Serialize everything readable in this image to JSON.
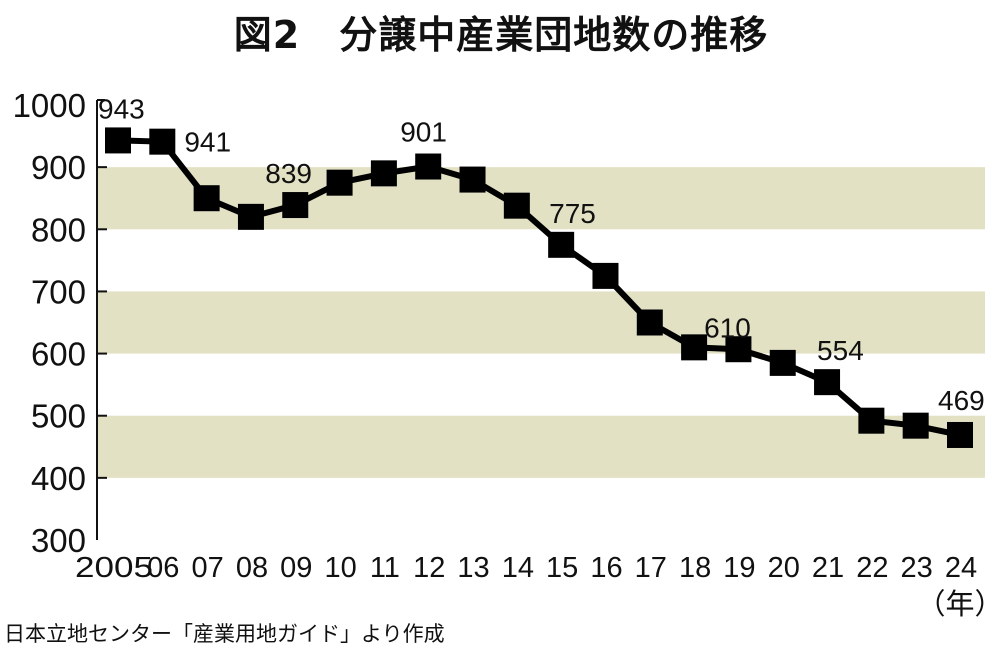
{
  "chart_data": {
    "type": "line",
    "title": "図2　分譲中産業団地数の推移",
    "xlabel": "（年）",
    "ylabel": "",
    "categories": [
      "2005",
      "06",
      "07",
      "08",
      "09",
      "10",
      "11",
      "12",
      "13",
      "14",
      "15",
      "16",
      "17",
      "18",
      "19",
      "20",
      "21",
      "22",
      "23",
      "24"
    ],
    "series": [
      {
        "name": "分譲中産業団地数",
        "values": [
          943,
          941,
          850,
          820,
          839,
          875,
          890,
          901,
          880,
          838,
          775,
          725,
          650,
          610,
          607,
          585,
          554,
          492,
          484,
          469
        ]
      }
    ],
    "data_labels": {
      "0": "943",
      "1": "941",
      "4": "839",
      "7": "901",
      "10": "775",
      "13": "610",
      "16": "554",
      "19": "469"
    },
    "ylim": [
      300,
      1000
    ],
    "yticks": [
      "300",
      "400",
      "500",
      "600",
      "700",
      "800",
      "900",
      "1000"
    ],
    "bands": [
      [
        400,
        500
      ],
      [
        600,
        700
      ],
      [
        800,
        900
      ]
    ],
    "band_color": "#e3e1c4",
    "line_color": "#000000",
    "grid": false,
    "source": "日本立地センター「産業用地ガイド」より作成"
  }
}
